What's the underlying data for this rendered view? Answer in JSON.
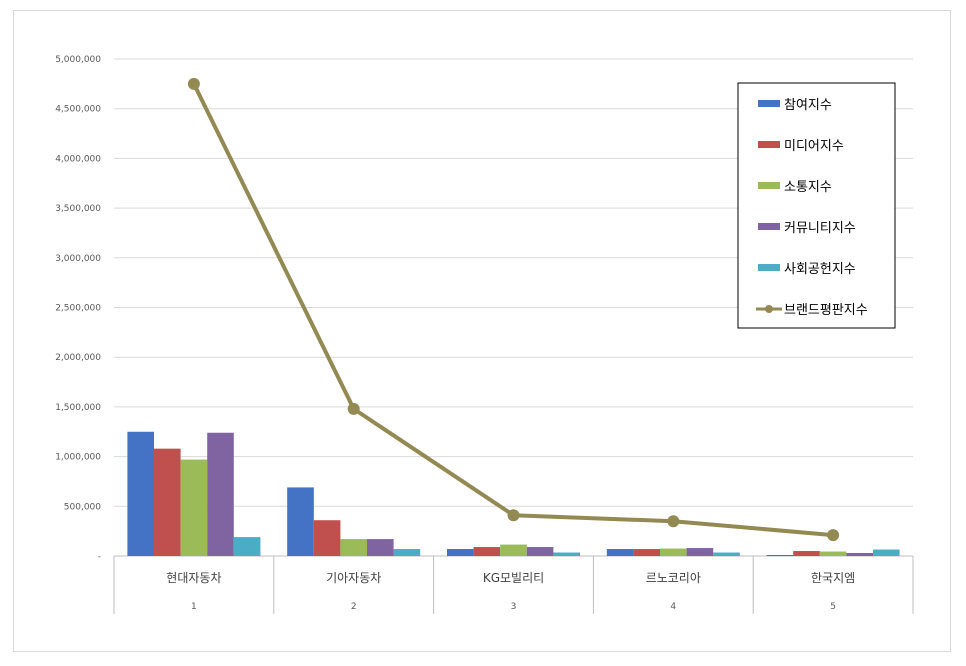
{
  "chart_data": {
    "type": "bar",
    "categories": [
      "현대자동차",
      "기아자동차",
      "KG모빌리티",
      "르노코리아",
      "한국지엠"
    ],
    "category_ranks": [
      "1",
      "2",
      "3",
      "4",
      "5"
    ],
    "series": [
      {
        "name": "참여지수",
        "type": "bar",
        "color": "#4472C4",
        "values": [
          1250000,
          690000,
          70000,
          70000,
          10000
        ]
      },
      {
        "name": "미디어지수",
        "type": "bar",
        "color": "#C0504D",
        "values": [
          1080000,
          360000,
          90000,
          70000,
          50000
        ]
      },
      {
        "name": "소통지수",
        "type": "bar",
        "color": "#9BBB59",
        "values": [
          970000,
          170000,
          115000,
          75000,
          45000
        ]
      },
      {
        "name": "커뮤니티지수",
        "type": "bar",
        "color": "#8064A2",
        "values": [
          1240000,
          170000,
          90000,
          80000,
          30000
        ]
      },
      {
        "name": "사회공헌지수",
        "type": "bar",
        "color": "#4BACC6",
        "values": [
          190000,
          70000,
          35000,
          35000,
          65000
        ]
      },
      {
        "name": "브랜드평판지수",
        "type": "line",
        "color": "#938953",
        "values": [
          4750000,
          1480000,
          410000,
          350000,
          210000
        ]
      }
    ],
    "y_ticks": [
      "-",
      "500,000",
      "1,000,000",
      "1,500,000",
      "2,000,000",
      "2,500,000",
      "3,000,000",
      "3,500,000",
      "4,000,000",
      "4,500,000",
      "5,000,000"
    ],
    "ylim": [
      0,
      5000000
    ],
    "grid": true,
    "legend_position": "top-right"
  }
}
